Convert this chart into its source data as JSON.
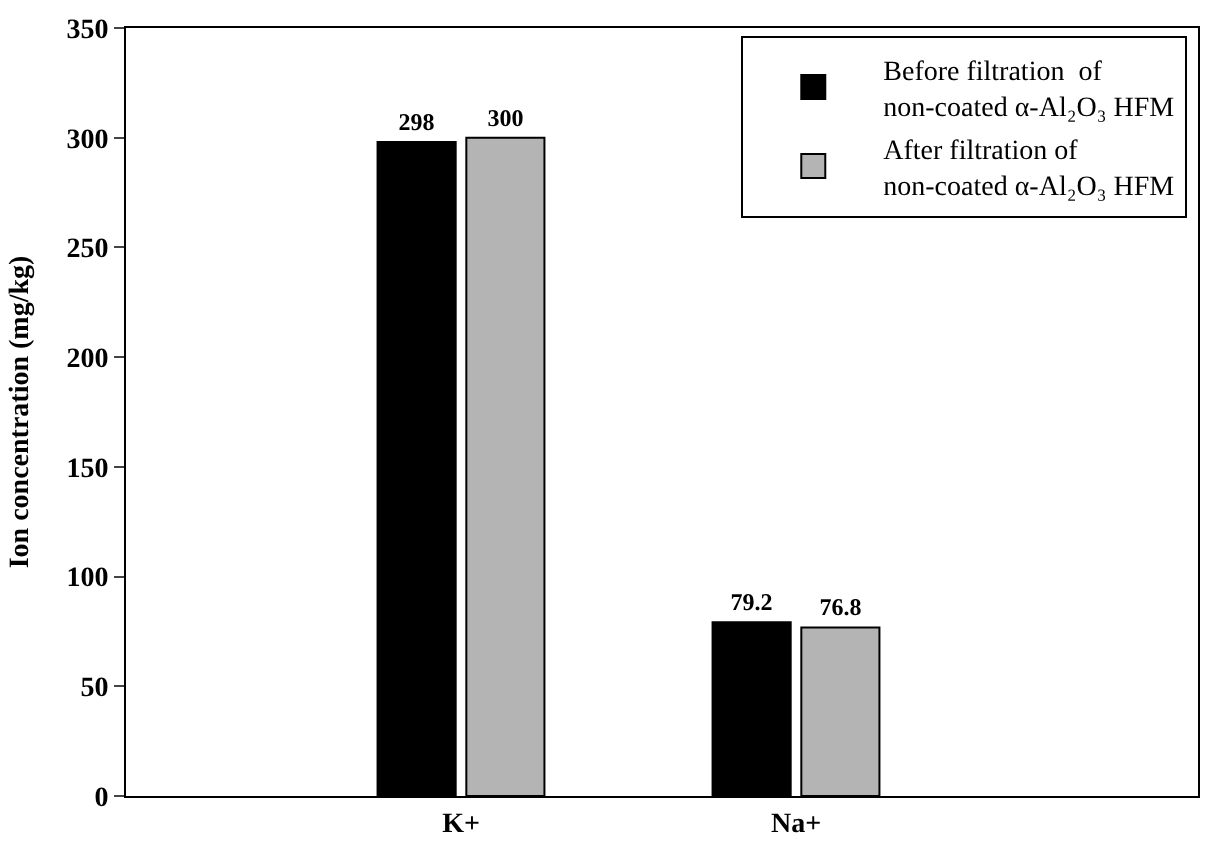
{
  "chart_data": {
    "type": "bar",
    "ylabel": "Ion concentration (mg/kg)",
    "categories": [
      "K+",
      "Na+"
    ],
    "series": [
      {
        "name": "Before filtration  of non-coated α-Al₂O₃ HFM",
        "color": "#000000",
        "values": [
          298,
          79.2
        ]
      },
      {
        "name": "After filtration of non-coated α-Al₂O₃ HFM",
        "color": "#b4b4b4",
        "values": [
          300,
          76.8
        ]
      }
    ],
    "ylim": [
      0,
      350
    ],
    "yticks": [
      0,
      50,
      100,
      150,
      200,
      250,
      300,
      350
    ],
    "data_labels": true,
    "legend": "top right"
  }
}
